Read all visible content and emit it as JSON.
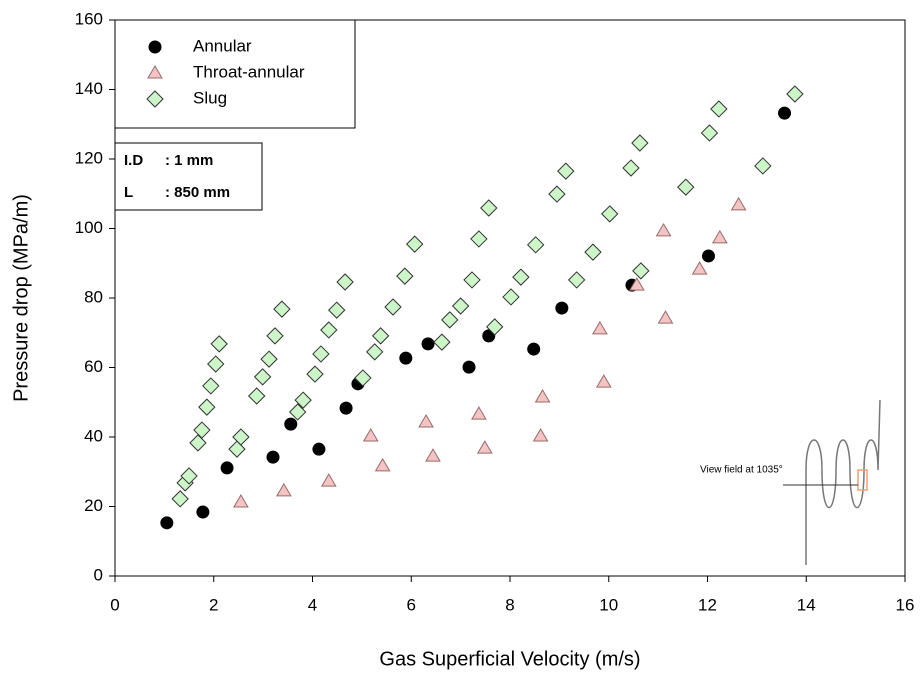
{
  "chart_data": {
    "type": "scatter",
    "x_label": "Gas Superficial Velocity (m/s)",
    "y_label": "Pressure drop (MPa/m)",
    "xlim": [
      0,
      16
    ],
    "xticks": [
      0,
      2,
      4,
      6,
      8,
      10,
      12,
      14,
      16
    ],
    "ylim": [
      0,
      160
    ],
    "yticks": [
      0,
      20,
      40,
      60,
      80,
      100,
      120,
      140,
      160
    ],
    "grid": false,
    "legend": "upper left",
    "series": [
      {
        "name": "Annular",
        "marker": "circle",
        "color": "#000000",
        "edge": "#000000",
        "x": [
          1.05,
          1.78,
          2.27,
          3.2,
          3.56,
          4.13,
          4.68,
          4.92,
          5.89,
          6.34,
          7.17,
          7.57,
          8.48,
          9.05,
          10.47,
          12.02,
          13.56
        ],
        "values": [
          15.3,
          18.4,
          31.1,
          34.2,
          43.7,
          36.5,
          48.3,
          55.3,
          62.7,
          66.8,
          60.1,
          69.1,
          65.3,
          77.1,
          83.7,
          92.1,
          133.2
        ]
      },
      {
        "name": "Throat-annular",
        "marker": "triangle",
        "color": "#f2c4c4",
        "edge": "#9a6a6a",
        "x": [
          2.55,
          3.42,
          4.33,
          5.18,
          5.42,
          6.3,
          6.44,
          7.37,
          7.49,
          8.66,
          8.62,
          9.82,
          9.9,
          10.57,
          11.11,
          11.15,
          11.84,
          12.25,
          12.63
        ],
        "values": [
          21.3,
          24.5,
          27.3,
          40.3,
          31.7,
          44.3,
          34.5,
          46.6,
          36.8,
          51.5,
          40.3,
          71.1,
          55.8,
          83.7,
          99.3,
          74.2,
          88.3,
          97.3,
          106.8
        ]
      },
      {
        "name": "Slug",
        "marker": "diamond",
        "color": "#ccf5c8",
        "edge": "#333333",
        "x": [
          1.32,
          1.42,
          1.5,
          1.68,
          1.76,
          1.86,
          1.94,
          2.04,
          2.11,
          2.47,
          2.55,
          2.87,
          2.99,
          3.12,
          3.24,
          3.38,
          3.7,
          3.81,
          4.05,
          4.17,
          4.33,
          4.49,
          4.66,
          5.02,
          5.26,
          5.38,
          5.63,
          5.87,
          6.07,
          6.62,
          6.78,
          7.0,
          7.23,
          7.37,
          7.57,
          7.69,
          8.02,
          8.22,
          8.52,
          8.95,
          9.13,
          9.35,
          9.68,
          10.02,
          10.45,
          10.65,
          10.63,
          11.56,
          12.04,
          12.23,
          13.12,
          13.77
        ],
        "values": [
          22.2,
          26.8,
          28.8,
          38.3,
          42,
          48.6,
          54.7,
          61,
          66.8,
          36.5,
          40,
          51.8,
          57.3,
          62.4,
          69.1,
          76.8,
          47.2,
          50.6,
          58.1,
          63.9,
          70.8,
          76.5,
          84.6,
          57,
          64.5,
          69.1,
          77.4,
          86.3,
          95.5,
          67.3,
          73.7,
          77.7,
          85.2,
          97,
          105.9,
          71.7,
          80.3,
          86,
          95.3,
          109.9,
          116.5,
          85.2,
          93.2,
          104.2,
          117.4,
          87.8,
          124.6,
          111.9,
          127.5,
          134.4,
          118,
          138.7
        ]
      }
    ],
    "info": [
      [
        "I.D",
        ": 1 mm"
      ],
      [
        "L",
        ": 850 mm"
      ]
    ],
    "inset_label": "View field at 1035°"
  }
}
